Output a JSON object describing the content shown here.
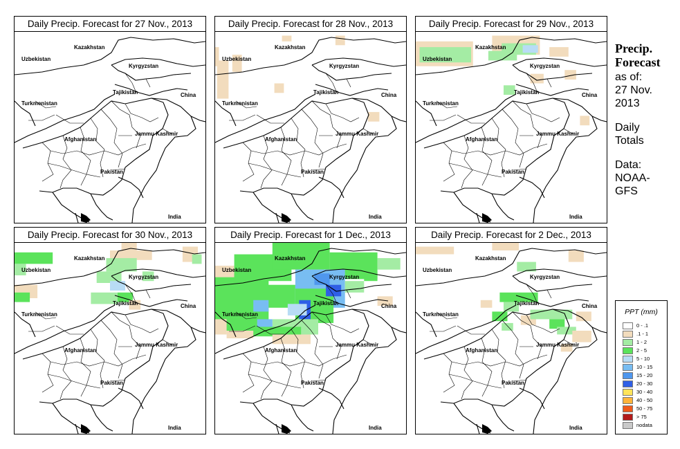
{
  "panels": [
    {
      "title": "Daily Precip. Forecast for  27 Nov., 2013",
      "precip": []
    },
    {
      "title": "Daily Precip. Forecast for  28 Nov., 2013",
      "precip": [
        {
          "r": [
            0.0,
            0.08,
            0.02,
            0.1
          ],
          "c": "l1"
        },
        {
          "r": [
            0.01,
            0.15,
            0.06,
            0.2
          ],
          "c": "l1"
        },
        {
          "r": [
            0.09,
            0.12,
            0.05,
            0.09
          ],
          "c": "l1"
        },
        {
          "r": [
            0.31,
            0.27,
            0.05,
            0.05
          ],
          "c": "l1"
        },
        {
          "r": [
            0.63,
            0.02,
            0.05,
            0.05
          ],
          "c": "l1"
        },
        {
          "r": [
            0.8,
            0.42,
            0.06,
            0.05
          ],
          "c": "l1"
        },
        {
          "r": [
            0.35,
            0.02,
            0.05,
            0.03
          ],
          "c": "l1"
        }
      ]
    },
    {
      "title": "Daily Precip. Forecast for  29 Nov., 2013",
      "precip": [
        {
          "r": [
            0.0,
            0.05,
            0.3,
            0.13
          ],
          "c": "l1"
        },
        {
          "r": [
            0.02,
            0.08,
            0.27,
            0.08
          ],
          "c": "l2"
        },
        {
          "r": [
            0.4,
            0.02,
            0.25,
            0.1
          ],
          "c": "l1"
        },
        {
          "r": [
            0.45,
            0.06,
            0.18,
            0.06
          ],
          "c": "l2"
        },
        {
          "r": [
            0.56,
            0.07,
            0.08,
            0.04
          ],
          "c": "l4"
        },
        {
          "r": [
            0.38,
            0.1,
            0.15,
            0.05
          ],
          "c": "l2"
        },
        {
          "r": [
            0.7,
            0.08,
            0.1,
            0.05
          ],
          "c": "l1"
        },
        {
          "r": [
            0.78,
            0.2,
            0.06,
            0.05
          ],
          "c": "l1"
        },
        {
          "r": [
            0.46,
            0.28,
            0.06,
            0.05
          ],
          "c": "l2"
        },
        {
          "r": [
            0.6,
            0.22,
            0.07,
            0.05
          ],
          "c": "l1"
        },
        {
          "r": [
            0.86,
            0.44,
            0.05,
            0.05
          ],
          "c": "l1"
        }
      ]
    },
    {
      "title": "Daily Precip. Forecast for  30 Nov., 2013",
      "precip": [
        {
          "r": [
            0.0,
            0.05,
            0.2,
            0.06
          ],
          "c": "l3"
        },
        {
          "r": [
            0.0,
            0.11,
            0.06,
            0.06
          ],
          "c": "l2"
        },
        {
          "r": [
            0.0,
            0.22,
            0.12,
            0.07
          ],
          "c": "l1"
        },
        {
          "r": [
            0.0,
            0.26,
            0.08,
            0.05
          ],
          "c": "l3"
        },
        {
          "r": [
            0.5,
            0.04,
            0.22,
            0.05
          ],
          "c": "l1"
        },
        {
          "r": [
            0.48,
            0.08,
            0.16,
            0.07
          ],
          "c": "l2"
        },
        {
          "r": [
            0.43,
            0.15,
            0.13,
            0.06
          ],
          "c": "l2"
        },
        {
          "r": [
            0.5,
            0.2,
            0.08,
            0.05
          ],
          "c": "l4"
        },
        {
          "r": [
            0.4,
            0.26,
            0.14,
            0.06
          ],
          "c": "l2"
        },
        {
          "r": [
            0.54,
            0.26,
            0.08,
            0.05
          ],
          "c": "l3"
        },
        {
          "r": [
            0.67,
            0.15,
            0.06,
            0.05
          ],
          "c": "l2"
        },
        {
          "r": [
            0.6,
            0.3,
            0.06,
            0.05
          ],
          "c": "l1"
        },
        {
          "r": [
            0.56,
            0.0,
            0.08,
            0.04
          ],
          "c": "l1"
        },
        {
          "r": [
            0.88,
            0.02,
            0.08,
            0.08
          ],
          "c": "l1"
        },
        {
          "r": [
            0.93,
            0.06,
            0.05,
            0.05
          ],
          "c": "l2"
        }
      ]
    },
    {
      "title": "Daily Precip. Forecast for  1 Dec., 2013",
      "precip": [
        {
          "r": [
            0.0,
            0.16,
            0.28,
            0.3
          ],
          "c": "l3"
        },
        {
          "r": [
            0.0,
            0.12,
            0.1,
            0.06
          ],
          "c": "l1"
        },
        {
          "r": [
            0.0,
            0.4,
            0.06,
            0.08
          ],
          "c": "l1"
        },
        {
          "r": [
            0.1,
            0.06,
            0.3,
            0.14
          ],
          "c": "l3"
        },
        {
          "r": [
            0.3,
            0.0,
            0.3,
            0.14
          ],
          "c": "l3"
        },
        {
          "r": [
            0.6,
            0.05,
            0.25,
            0.14
          ],
          "c": "l3"
        },
        {
          "r": [
            0.85,
            0.08,
            0.12,
            0.06
          ],
          "c": "l2"
        },
        {
          "r": [
            0.2,
            0.22,
            0.22,
            0.12
          ],
          "c": "l3"
        },
        {
          "r": [
            0.42,
            0.14,
            0.26,
            0.2
          ],
          "c": "l5"
        },
        {
          "r": [
            0.42,
            0.24,
            0.2,
            0.18
          ],
          "c": "l3"
        },
        {
          "r": [
            0.44,
            0.3,
            0.06,
            0.12
          ],
          "c": "l7"
        },
        {
          "r": [
            0.52,
            0.16,
            0.08,
            0.06
          ],
          "c": "l6"
        },
        {
          "r": [
            0.58,
            0.22,
            0.08,
            0.06
          ],
          "c": "l7"
        },
        {
          "r": [
            0.3,
            0.4,
            0.24,
            0.08
          ],
          "c": "l2"
        },
        {
          "r": [
            0.22,
            0.4,
            0.08,
            0.06
          ],
          "c": "l5"
        },
        {
          "r": [
            0.15,
            0.44,
            0.3,
            0.05
          ],
          "c": "l3"
        },
        {
          "r": [
            0.06,
            0.46,
            0.14,
            0.04
          ],
          "c": "l1"
        },
        {
          "r": [
            0.3,
            0.48,
            0.2,
            0.05
          ],
          "c": "l1"
        },
        {
          "r": [
            0.85,
            0.28,
            0.08,
            0.05
          ],
          "c": "l1"
        },
        {
          "r": [
            0.68,
            0.2,
            0.1,
            0.06
          ],
          "c": "l2"
        },
        {
          "r": [
            0.78,
            0.15,
            0.07,
            0.05
          ],
          "c": "l3"
        },
        {
          "r": [
            0.38,
            0.32,
            0.1,
            0.06
          ],
          "c": "l4"
        },
        {
          "r": [
            0.2,
            0.3,
            0.08,
            0.06
          ],
          "c": "l5"
        }
      ]
    },
    {
      "title": "Daily Precip. Forecast for  2 Dec., 2013",
      "precip": [
        {
          "r": [
            0.0,
            0.02,
            0.2,
            0.04
          ],
          "c": "l1"
        },
        {
          "r": [
            0.4,
            0.0,
            0.14,
            0.04
          ],
          "c": "l1"
        },
        {
          "r": [
            0.8,
            0.04,
            0.08,
            0.06
          ],
          "c": "l1"
        },
        {
          "r": [
            0.53,
            0.1,
            0.1,
            0.05
          ],
          "c": "l2"
        },
        {
          "r": [
            0.44,
            0.26,
            0.2,
            0.05
          ],
          "c": "l3"
        },
        {
          "r": [
            0.46,
            0.31,
            0.08,
            0.05
          ],
          "c": "l2"
        },
        {
          "r": [
            0.4,
            0.36,
            0.08,
            0.05
          ],
          "c": "l3"
        },
        {
          "r": [
            0.45,
            0.42,
            0.06,
            0.04
          ],
          "c": "l2"
        },
        {
          "r": [
            0.55,
            0.38,
            0.08,
            0.05
          ],
          "c": "l1"
        },
        {
          "r": [
            0.6,
            0.35,
            0.22,
            0.05
          ],
          "c": "l2"
        },
        {
          "r": [
            0.7,
            0.4,
            0.08,
            0.05
          ],
          "c": "l3"
        },
        {
          "r": [
            0.74,
            0.44,
            0.1,
            0.04
          ],
          "c": "l2"
        },
        {
          "r": [
            0.82,
            0.46,
            0.1,
            0.06
          ],
          "c": "l1"
        },
        {
          "r": [
            0.84,
            0.36,
            0.08,
            0.05
          ],
          "c": "l1"
        },
        {
          "r": [
            0.76,
            0.53,
            0.06,
            0.04
          ],
          "c": "l1"
        },
        {
          "r": [
            0.34,
            0.3,
            0.06,
            0.04
          ],
          "c": "l1"
        }
      ]
    }
  ],
  "map_labels": {
    "kazakhstan": "Kazakhstan",
    "uzbekistan": "Uzbekistan",
    "kyrgyzstan": "Kyrgyzstan",
    "tajikistan": "Tajikistan",
    "china": "China",
    "turkmenistan": "Turkmenistan",
    "afghanistan": "Afghanistan",
    "jammu_kashmir": "Jammu Kashmir",
    "pakistan": "Pakistan",
    "india": "India"
  },
  "side": {
    "heading_line1": "Precip.",
    "heading_line2": "Forecast",
    "asof_line1": "as of:",
    "asof_line2": "27 Nov.",
    "asof_line3": "2013",
    "totals_line1": "Daily",
    "totals_line2": "Totals",
    "data_line1": "Data:",
    "data_line2": "NOAA-",
    "data_line3": "GFS"
  },
  "legend": {
    "title": "PPT (mm)",
    "items": [
      {
        "key": "l0",
        "label": "0 - .1",
        "color": "#ffffff"
      },
      {
        "key": "l1",
        "label": ".1 - 1",
        "color": "#f2dcbd"
      },
      {
        "key": "l2",
        "label": "1 - 2",
        "color": "#a4eca4"
      },
      {
        "key": "l3",
        "label": "2 - 5",
        "color": "#5be35b"
      },
      {
        "key": "l4",
        "label": "5 - 10",
        "color": "#b8dcf5"
      },
      {
        "key": "l5",
        "label": "10 - 15",
        "color": "#78bdf2"
      },
      {
        "key": "l6",
        "label": "15 - 20",
        "color": "#4f97ee"
      },
      {
        "key": "l7",
        "label": "20 - 30",
        "color": "#2f5fe6"
      },
      {
        "key": "l8",
        "label": "30 - 40",
        "color": "#ffe45a"
      },
      {
        "key": "l9",
        "label": "40 - 50",
        "color": "#ffb43a"
      },
      {
        "key": "l10",
        "label": "50 - 75",
        "color": "#f05a1a"
      },
      {
        "key": "l11",
        "label": "> 75",
        "color": "#b31b1b"
      },
      {
        "key": "l12",
        "label": "nodata",
        "color": "#c9c9c9"
      }
    ]
  }
}
